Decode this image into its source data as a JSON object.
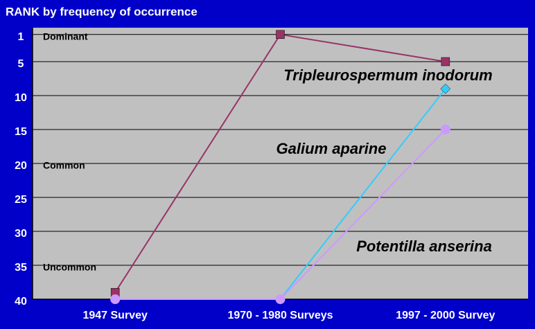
{
  "chart_data": {
    "type": "line",
    "title": "RANK by frequency of occurrence",
    "categories": [
      "1947 Survey",
      "1970 - 1980 Surveys",
      "1997 - 2000 Survey"
    ],
    "series": [
      {
        "name": "Tripleurospermum inodorum",
        "color": "#993366",
        "marker": "square",
        "values": [
          39,
          1,
          5
        ]
      },
      {
        "name": "Galium aparine",
        "color": "#33ccff",
        "marker": "diamond",
        "values": [
          40,
          40,
          9
        ]
      },
      {
        "name": "Potentilla anserina",
        "color": "#cc99ff",
        "marker": "circle",
        "values": [
          40,
          40,
          15
        ]
      }
    ],
    "annotations": [
      {
        "text": "Dominant",
        "y": 1
      },
      {
        "text": "Common",
        "y": 20
      },
      {
        "text": "Uncommon",
        "y": 35
      }
    ],
    "ylim": [
      0,
      40
    ],
    "y_inverted": true,
    "yticks": [
      1,
      5,
      10,
      15,
      20,
      25,
      30,
      35,
      40
    ],
    "grid": true
  }
}
